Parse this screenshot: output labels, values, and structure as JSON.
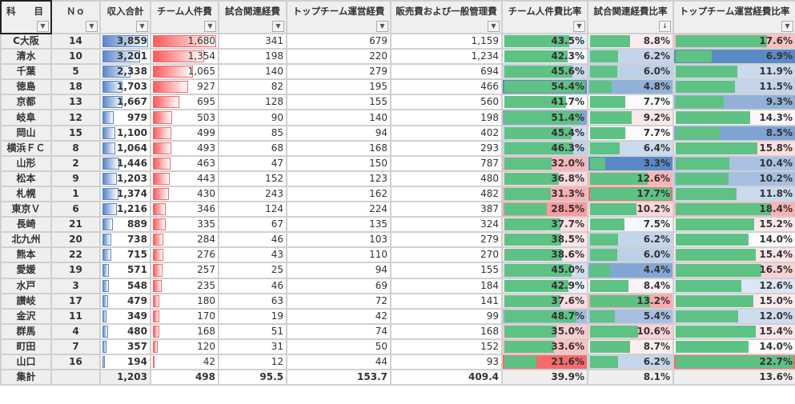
{
  "headers": [
    "科　　目",
    "Ｎｏ",
    "収入合計",
    "チーム人件費",
    "試合関連経費",
    "トップチーム運営経費",
    "販売費および一般管理費",
    "チーム人件費比率",
    "試合関連経費比率",
    "トップチーム運営経費比率"
  ],
  "sorted_column_index": 8,
  "colors": {
    "revenue_bar": "#5b87c8",
    "salary_bar": "#f8696b",
    "ratio_bar": "#5ec284",
    "scale_red": "#f8696b",
    "scale_white": "#fcfcff",
    "scale_blue": "#5a8ac6"
  },
  "color_scale": {
    "7": "low-red-high-blue",
    "8": "low-blue-high-red",
    "9": "low-blue-high-red"
  },
  "rows": [
    [
      "C大阪",
      "14",
      "3,859",
      "1,680",
      "341",
      "679",
      "1,159",
      "43.5%",
      "8.8%",
      "17.6%"
    ],
    [
      "清水",
      "10",
      "3,201",
      "1,354",
      "198",
      "220",
      "1,234",
      "42.3%",
      "6.2%",
      "6.9%"
    ],
    [
      "千葉",
      "5",
      "2,338",
      "1,065",
      "140",
      "279",
      "694",
      "45.6%",
      "6.0%",
      "11.9%"
    ],
    [
      "徳島",
      "18",
      "1,703",
      "927",
      "82",
      "195",
      "466",
      "54.4%",
      "4.8%",
      "11.5%"
    ],
    [
      "京都",
      "13",
      "1,667",
      "695",
      "128",
      "155",
      "560",
      "41.7%",
      "7.7%",
      "9.3%"
    ],
    [
      "岐阜",
      "12",
      "979",
      "503",
      "90",
      "140",
      "198",
      "51.4%",
      "9.2%",
      "14.3%"
    ],
    [
      "岡山",
      "15",
      "1,100",
      "499",
      "85",
      "94",
      "402",
      "45.4%",
      "7.7%",
      "8.5%"
    ],
    [
      "横浜ＦＣ",
      "8",
      "1,064",
      "493",
      "68",
      "168",
      "293",
      "46.3%",
      "6.4%",
      "15.8%"
    ],
    [
      "山形",
      "2",
      "1,446",
      "463",
      "47",
      "150",
      "787",
      "32.0%",
      "3.3%",
      "10.4%"
    ],
    [
      "松本",
      "9",
      "1,203",
      "443",
      "152",
      "123",
      "480",
      "36.8%",
      "12.6%",
      "10.2%"
    ],
    [
      "札幌",
      "1",
      "1,374",
      "430",
      "243",
      "162",
      "482",
      "31.3%",
      "17.7%",
      "11.8%"
    ],
    [
      "東京Ｖ",
      "6",
      "1,216",
      "346",
      "124",
      "224",
      "387",
      "28.5%",
      "10.2%",
      "18.4%"
    ],
    [
      "長崎",
      "21",
      "889",
      "335",
      "67",
      "135",
      "324",
      "37.7%",
      "7.5%",
      "15.2%"
    ],
    [
      "北九州",
      "20",
      "738",
      "284",
      "46",
      "103",
      "279",
      "38.5%",
      "6.2%",
      "14.0%"
    ],
    [
      "熊本",
      "22",
      "715",
      "276",
      "43",
      "110",
      "270",
      "38.6%",
      "6.0%",
      "15.4%"
    ],
    [
      "愛媛",
      "19",
      "571",
      "257",
      "25",
      "94",
      "155",
      "45.0%",
      "4.4%",
      "16.5%"
    ],
    [
      "水戸",
      "3",
      "548",
      "235",
      "46",
      "69",
      "184",
      "42.9%",
      "8.4%",
      "12.6%"
    ],
    [
      "讃岐",
      "17",
      "479",
      "180",
      "63",
      "72",
      "141",
      "37.6%",
      "13.2%",
      "15.0%"
    ],
    [
      "金沢",
      "11",
      "349",
      "170",
      "19",
      "42",
      "99",
      "48.7%",
      "5.4%",
      "12.0%"
    ],
    [
      "群馬",
      "4",
      "480",
      "168",
      "51",
      "74",
      "168",
      "35.0%",
      "10.6%",
      "15.4%"
    ],
    [
      "町田",
      "7",
      "357",
      "120",
      "31",
      "50",
      "152",
      "33.6%",
      "8.7%",
      "14.0%"
    ],
    [
      "山口",
      "16",
      "194",
      "42",
      "12",
      "44",
      "93",
      "21.6%",
      "6.2%",
      "22.7%"
    ]
  ],
  "total": [
    "集計",
    "",
    "1,203",
    "498",
    "95.5",
    "153.7",
    "409.4",
    "39.9%",
    "8.1%",
    "13.6%"
  ]
}
